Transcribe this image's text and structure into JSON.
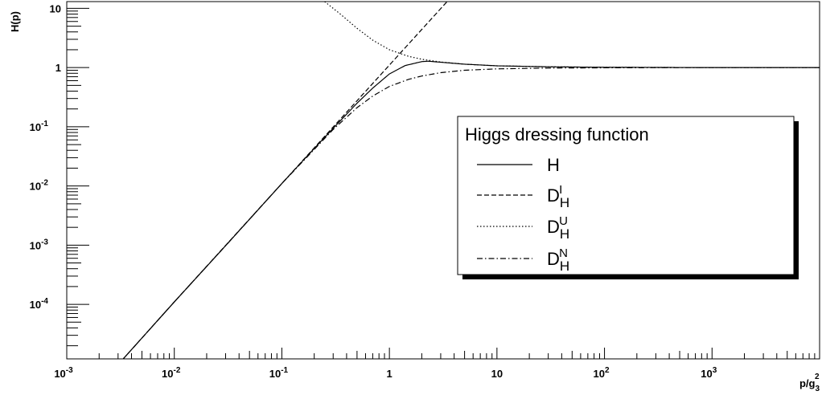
{
  "chart_data": {
    "type": "line",
    "title": "",
    "xlabel": {
      "base": "p/g",
      "sub": "3",
      "sup": "2"
    },
    "ylabel": "H(p)",
    "xscale": "log",
    "yscale": "log",
    "xlim": [
      0.001,
      10000
    ],
    "ylim": [
      1.2e-05,
      13
    ],
    "x_ticks": [
      {
        "base": "10",
        "exp": "-3",
        "value": 0.001
      },
      {
        "base": "10",
        "exp": "-2",
        "value": 0.01
      },
      {
        "base": "10",
        "exp": "-1",
        "value": 0.1
      },
      {
        "base": "1",
        "exp": "",
        "value": 1
      },
      {
        "base": "10",
        "exp": "",
        "value": 10
      },
      {
        "base": "10",
        "exp": "2",
        "value": 100
      },
      {
        "base": "10",
        "exp": "3",
        "value": 1000
      }
    ],
    "y_ticks": [
      {
        "base": "10",
        "exp": "-4",
        "value": 0.0001
      },
      {
        "base": "10",
        "exp": "-3",
        "value": 0.001
      },
      {
        "base": "10",
        "exp": "-2",
        "value": 0.01
      },
      {
        "base": "10",
        "exp": "-1",
        "value": 0.1
      },
      {
        "base": "1",
        "exp": "",
        "value": 1
      },
      {
        "base": "10",
        "exp": "",
        "value": 10
      }
    ],
    "legend": {
      "title": "Higgs dressing function",
      "placement": "right"
    },
    "series": [
      {
        "name": "H",
        "name_sub": "",
        "name_sup": "",
        "style": "solid",
        "x": [
          0.003,
          0.01,
          0.03,
          0.1,
          0.2,
          0.3,
          0.5,
          0.7,
          1.0,
          1.4,
          2.0,
          2.3,
          3.0,
          5.0,
          10,
          30,
          100,
          1000,
          10000
        ],
        "y": [
          9.6e-06,
          0.00011,
          0.00098,
          0.011,
          0.043,
          0.094,
          0.25,
          0.45,
          0.78,
          1.08,
          1.26,
          1.28,
          1.23,
          1.14,
          1.07,
          1.03,
          1.01,
          1.0,
          1.0
        ]
      },
      {
        "name": "D",
        "name_sub": "H",
        "name_sup": "I",
        "style": "dashed",
        "x": [
          0.003,
          0.01,
          0.1,
          1,
          2,
          3,
          4.2
        ],
        "y": [
          9.6e-06,
          0.00011,
          0.011,
          1.1,
          4.4,
          9.9,
          19.4
        ]
      },
      {
        "name": "D",
        "name_sub": "H",
        "name_sup": "U",
        "style": "dotted",
        "x": [
          0.25,
          0.35,
          0.5,
          0.7,
          1.0,
          1.5,
          2,
          3,
          5,
          10,
          30,
          100,
          1000,
          10000
        ],
        "y": [
          13,
          8.0,
          4.6,
          2.9,
          2.0,
          1.55,
          1.38,
          1.24,
          1.14,
          1.07,
          1.03,
          1.01,
          1.0,
          1.0
        ]
      },
      {
        "name": "D",
        "name_sub": "H",
        "name_sup": "N",
        "style": "dashdot",
        "x": [
          0.003,
          0.01,
          0.03,
          0.1,
          0.3,
          0.5,
          0.7,
          1.0,
          1.5,
          2,
          3,
          5,
          10,
          30,
          100,
          1000,
          10000
        ],
        "y": [
          9.6e-06,
          0.00011,
          0.00098,
          0.011,
          0.09,
          0.21,
          0.33,
          0.48,
          0.63,
          0.72,
          0.82,
          0.9,
          0.95,
          0.98,
          0.99,
          1.0,
          1.0
        ]
      }
    ]
  }
}
